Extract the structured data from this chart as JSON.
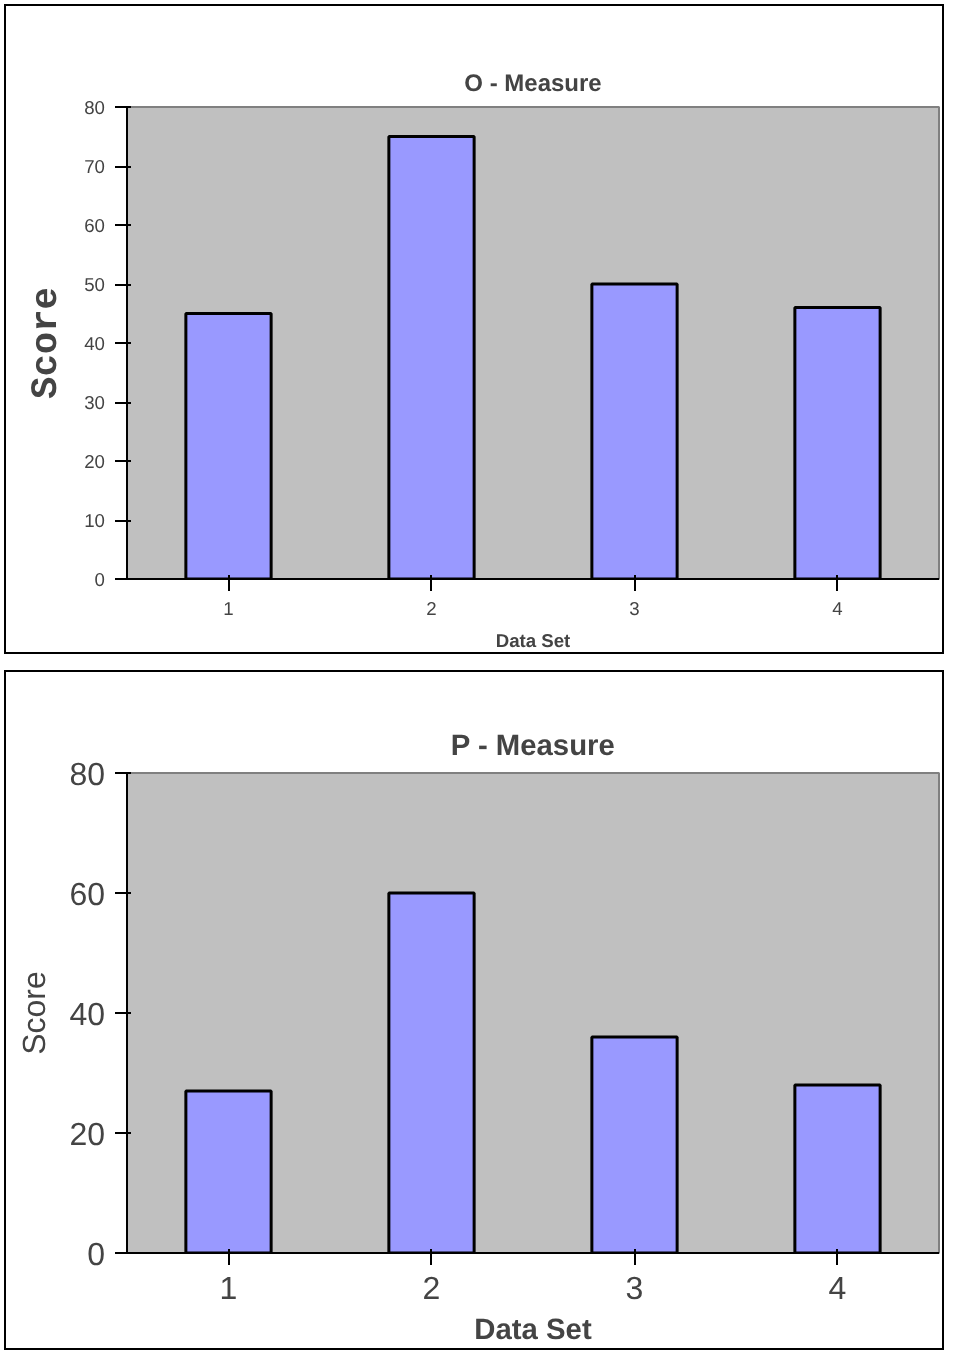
{
  "chart_data": [
    {
      "type": "bar",
      "title": "O - Measure",
      "xlabel": "Data Set",
      "ylabel": "Score",
      "categories": [
        "1",
        "2",
        "3",
        "4"
      ],
      "values": [
        45,
        75,
        50,
        46
      ],
      "color": "#9999ff",
      "ylim": [
        0,
        80
      ],
      "yticks": [
        0,
        10,
        20,
        30,
        40,
        50,
        60,
        70,
        80
      ],
      "grid": false
    },
    {
      "type": "bar",
      "title": "P - Measure",
      "xlabel": "Data Set",
      "ylabel": "Score",
      "categories": [
        "1",
        "2",
        "3",
        "4"
      ],
      "values": [
        27,
        60,
        36,
        28
      ],
      "color": "#9999ff",
      "ylim": [
        0,
        80
      ],
      "yticks": [
        0,
        20,
        40,
        60,
        80
      ],
      "grid": false
    }
  ]
}
